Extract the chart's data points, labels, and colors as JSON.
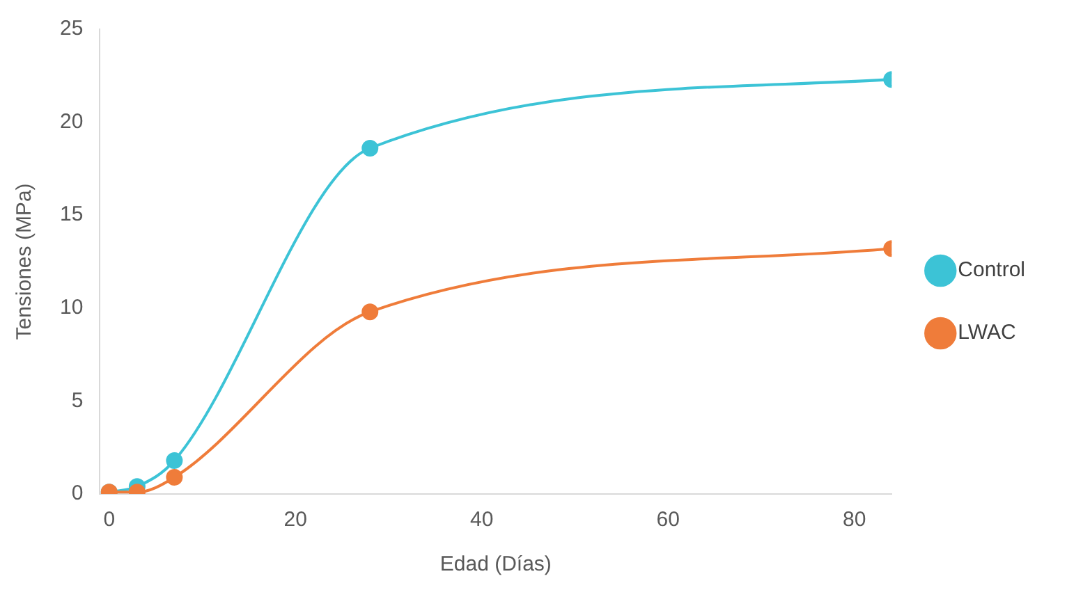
{
  "chart_data": {
    "type": "line",
    "xlabel": "Edad (Días)",
    "ylabel": "Tensiones (MPa)",
    "xlim": [
      -1,
      84
    ],
    "xticks": [
      0,
      20,
      40,
      60,
      80
    ],
    "ylim": [
      0,
      25
    ],
    "yticks": [
      0,
      5,
      10,
      15,
      20,
      25
    ],
    "grid": false,
    "legend": "right",
    "marker": "circle",
    "line_style": "solid",
    "series": [
      {
        "name": "Control",
        "color": "#3cc3d6",
        "x": [
          0,
          3,
          7,
          28,
          84
        ],
        "values": [
          0.1,
          0.4,
          1.8,
          18.6,
          22.3
        ]
      },
      {
        "name": "LWAC",
        "color": "#ef7c3a",
        "x": [
          0,
          3,
          7,
          28,
          84
        ],
        "values": [
          0.1,
          0.1,
          0.9,
          9.8,
          13.2
        ]
      }
    ]
  }
}
